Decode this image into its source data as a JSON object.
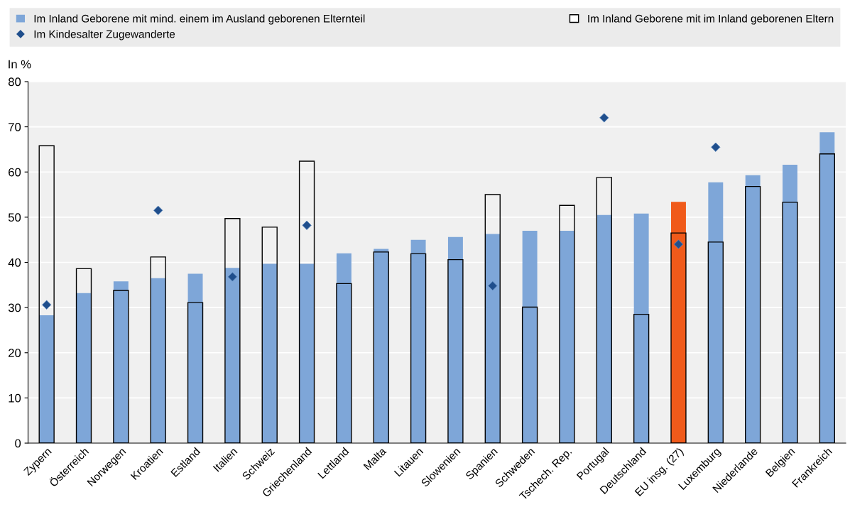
{
  "chart_data": {
    "type": "bar",
    "ylabel": "In %",
    "categories": [
      "Zypern",
      "Österreich",
      "Norwegen",
      "Kroatien",
      "Estland",
      "Italien",
      "Schweiz",
      "Griechenland",
      "Lettland",
      "Malta",
      "Litauen",
      "Slowenien",
      "Spanien",
      "Schweden",
      "Tschech. Rep.",
      "Portugal",
      "Deutschland",
      "EU insg. (27)",
      "Luxemburg",
      "Niederlande",
      "Belgien",
      "Frankreich"
    ],
    "series": [
      {
        "name": "Im Inland Geborene mit mind. einem im Ausland geborenen Elternteil",
        "color": "#7ea6d8",
        "colors": [
          "#7ea6d8",
          "#7ea6d8",
          "#7ea6d8",
          "#7ea6d8",
          "#7ea6d8",
          "#7ea6d8",
          "#7ea6d8",
          "#7ea6d8",
          "#7ea6d8",
          "#7ea6d8",
          "#7ea6d8",
          "#7ea6d8",
          "#7ea6d8",
          "#7ea6d8",
          "#7ea6d8",
          "#7ea6d8",
          "#7ea6d8",
          "#f05a1a",
          "#7ea6d8",
          "#7ea6d8",
          "#7ea6d8",
          "#7ea6d8"
        ],
        "values": [
          28.3,
          33.2,
          35.8,
          36.5,
          37.5,
          38.8,
          39.7,
          39.7,
          42.0,
          43.0,
          45.0,
          45.6,
          46.3,
          47.0,
          47.0,
          50.5,
          50.8,
          53.4,
          57.7,
          59.3,
          61.6,
          68.8
        ]
      },
      {
        "name": "Im Inland Geborene mit im Inland geborenen Eltern",
        "color": "#000000",
        "values": [
          65.8,
          38.6,
          33.8,
          41.2,
          31.1,
          49.7,
          47.8,
          62.4,
          35.3,
          42.3,
          41.9,
          40.6,
          55.0,
          30.1,
          52.6,
          58.8,
          28.5,
          46.5,
          44.5,
          56.8,
          53.3,
          64.0
        ]
      },
      {
        "name": "Im Kindesalter Zugewanderte",
        "type": "scatter",
        "color": "#1f4e8c",
        "marker": "diamond",
        "values": [
          30.6,
          null,
          null,
          51.5,
          null,
          36.8,
          null,
          48.2,
          null,
          null,
          null,
          null,
          34.8,
          null,
          null,
          72.0,
          null,
          44.0,
          65.5,
          null,
          null,
          null
        ]
      }
    ],
    "ylim": [
      0,
      80
    ],
    "yticks": [
      0,
      10,
      20,
      30,
      40,
      50,
      60,
      70,
      80
    ],
    "grid": "y",
    "legend": "top"
  }
}
